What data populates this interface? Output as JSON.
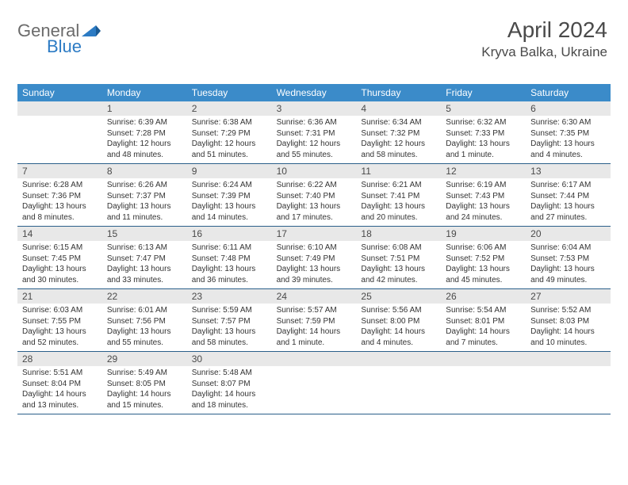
{
  "logo": {
    "text1": "General",
    "text2": "Blue"
  },
  "header": {
    "title": "April 2024",
    "location": "Kryva Balka, Ukraine"
  },
  "colors": {
    "header_bg": "#3b8bc9",
    "header_text": "#ffffff",
    "daynum_bg": "#e8e8e8",
    "text": "#333333",
    "rule": "#2b5f8a",
    "logo_blue": "#2c7bc4",
    "logo_gray": "#6b6b6b"
  },
  "dayNames": [
    "Sunday",
    "Monday",
    "Tuesday",
    "Wednesday",
    "Thursday",
    "Friday",
    "Saturday"
  ],
  "weeks": [
    [
      {
        "n": "",
        "lines": []
      },
      {
        "n": "1",
        "lines": [
          "Sunrise: 6:39 AM",
          "Sunset: 7:28 PM",
          "Daylight: 12 hours",
          "and 48 minutes."
        ]
      },
      {
        "n": "2",
        "lines": [
          "Sunrise: 6:38 AM",
          "Sunset: 7:29 PM",
          "Daylight: 12 hours",
          "and 51 minutes."
        ]
      },
      {
        "n": "3",
        "lines": [
          "Sunrise: 6:36 AM",
          "Sunset: 7:31 PM",
          "Daylight: 12 hours",
          "and 55 minutes."
        ]
      },
      {
        "n": "4",
        "lines": [
          "Sunrise: 6:34 AM",
          "Sunset: 7:32 PM",
          "Daylight: 12 hours",
          "and 58 minutes."
        ]
      },
      {
        "n": "5",
        "lines": [
          "Sunrise: 6:32 AM",
          "Sunset: 7:33 PM",
          "Daylight: 13 hours",
          "and 1 minute."
        ]
      },
      {
        "n": "6",
        "lines": [
          "Sunrise: 6:30 AM",
          "Sunset: 7:35 PM",
          "Daylight: 13 hours",
          "and 4 minutes."
        ]
      }
    ],
    [
      {
        "n": "7",
        "lines": [
          "Sunrise: 6:28 AM",
          "Sunset: 7:36 PM",
          "Daylight: 13 hours",
          "and 8 minutes."
        ]
      },
      {
        "n": "8",
        "lines": [
          "Sunrise: 6:26 AM",
          "Sunset: 7:37 PM",
          "Daylight: 13 hours",
          "and 11 minutes."
        ]
      },
      {
        "n": "9",
        "lines": [
          "Sunrise: 6:24 AM",
          "Sunset: 7:39 PM",
          "Daylight: 13 hours",
          "and 14 minutes."
        ]
      },
      {
        "n": "10",
        "lines": [
          "Sunrise: 6:22 AM",
          "Sunset: 7:40 PM",
          "Daylight: 13 hours",
          "and 17 minutes."
        ]
      },
      {
        "n": "11",
        "lines": [
          "Sunrise: 6:21 AM",
          "Sunset: 7:41 PM",
          "Daylight: 13 hours",
          "and 20 minutes."
        ]
      },
      {
        "n": "12",
        "lines": [
          "Sunrise: 6:19 AM",
          "Sunset: 7:43 PM",
          "Daylight: 13 hours",
          "and 24 minutes."
        ]
      },
      {
        "n": "13",
        "lines": [
          "Sunrise: 6:17 AM",
          "Sunset: 7:44 PM",
          "Daylight: 13 hours",
          "and 27 minutes."
        ]
      }
    ],
    [
      {
        "n": "14",
        "lines": [
          "Sunrise: 6:15 AM",
          "Sunset: 7:45 PM",
          "Daylight: 13 hours",
          "and 30 minutes."
        ]
      },
      {
        "n": "15",
        "lines": [
          "Sunrise: 6:13 AM",
          "Sunset: 7:47 PM",
          "Daylight: 13 hours",
          "and 33 minutes."
        ]
      },
      {
        "n": "16",
        "lines": [
          "Sunrise: 6:11 AM",
          "Sunset: 7:48 PM",
          "Daylight: 13 hours",
          "and 36 minutes."
        ]
      },
      {
        "n": "17",
        "lines": [
          "Sunrise: 6:10 AM",
          "Sunset: 7:49 PM",
          "Daylight: 13 hours",
          "and 39 minutes."
        ]
      },
      {
        "n": "18",
        "lines": [
          "Sunrise: 6:08 AM",
          "Sunset: 7:51 PM",
          "Daylight: 13 hours",
          "and 42 minutes."
        ]
      },
      {
        "n": "19",
        "lines": [
          "Sunrise: 6:06 AM",
          "Sunset: 7:52 PM",
          "Daylight: 13 hours",
          "and 45 minutes."
        ]
      },
      {
        "n": "20",
        "lines": [
          "Sunrise: 6:04 AM",
          "Sunset: 7:53 PM",
          "Daylight: 13 hours",
          "and 49 minutes."
        ]
      }
    ],
    [
      {
        "n": "21",
        "lines": [
          "Sunrise: 6:03 AM",
          "Sunset: 7:55 PM",
          "Daylight: 13 hours",
          "and 52 minutes."
        ]
      },
      {
        "n": "22",
        "lines": [
          "Sunrise: 6:01 AM",
          "Sunset: 7:56 PM",
          "Daylight: 13 hours",
          "and 55 minutes."
        ]
      },
      {
        "n": "23",
        "lines": [
          "Sunrise: 5:59 AM",
          "Sunset: 7:57 PM",
          "Daylight: 13 hours",
          "and 58 minutes."
        ]
      },
      {
        "n": "24",
        "lines": [
          "Sunrise: 5:57 AM",
          "Sunset: 7:59 PM",
          "Daylight: 14 hours",
          "and 1 minute."
        ]
      },
      {
        "n": "25",
        "lines": [
          "Sunrise: 5:56 AM",
          "Sunset: 8:00 PM",
          "Daylight: 14 hours",
          "and 4 minutes."
        ]
      },
      {
        "n": "26",
        "lines": [
          "Sunrise: 5:54 AM",
          "Sunset: 8:01 PM",
          "Daylight: 14 hours",
          "and 7 minutes."
        ]
      },
      {
        "n": "27",
        "lines": [
          "Sunrise: 5:52 AM",
          "Sunset: 8:03 PM",
          "Daylight: 14 hours",
          "and 10 minutes."
        ]
      }
    ],
    [
      {
        "n": "28",
        "lines": [
          "Sunrise: 5:51 AM",
          "Sunset: 8:04 PM",
          "Daylight: 14 hours",
          "and 13 minutes."
        ]
      },
      {
        "n": "29",
        "lines": [
          "Sunrise: 5:49 AM",
          "Sunset: 8:05 PM",
          "Daylight: 14 hours",
          "and 15 minutes."
        ]
      },
      {
        "n": "30",
        "lines": [
          "Sunrise: 5:48 AM",
          "Sunset: 8:07 PM",
          "Daylight: 14 hours",
          "and 18 minutes."
        ]
      },
      {
        "n": "",
        "lines": []
      },
      {
        "n": "",
        "lines": []
      },
      {
        "n": "",
        "lines": []
      },
      {
        "n": "",
        "lines": []
      }
    ]
  ]
}
